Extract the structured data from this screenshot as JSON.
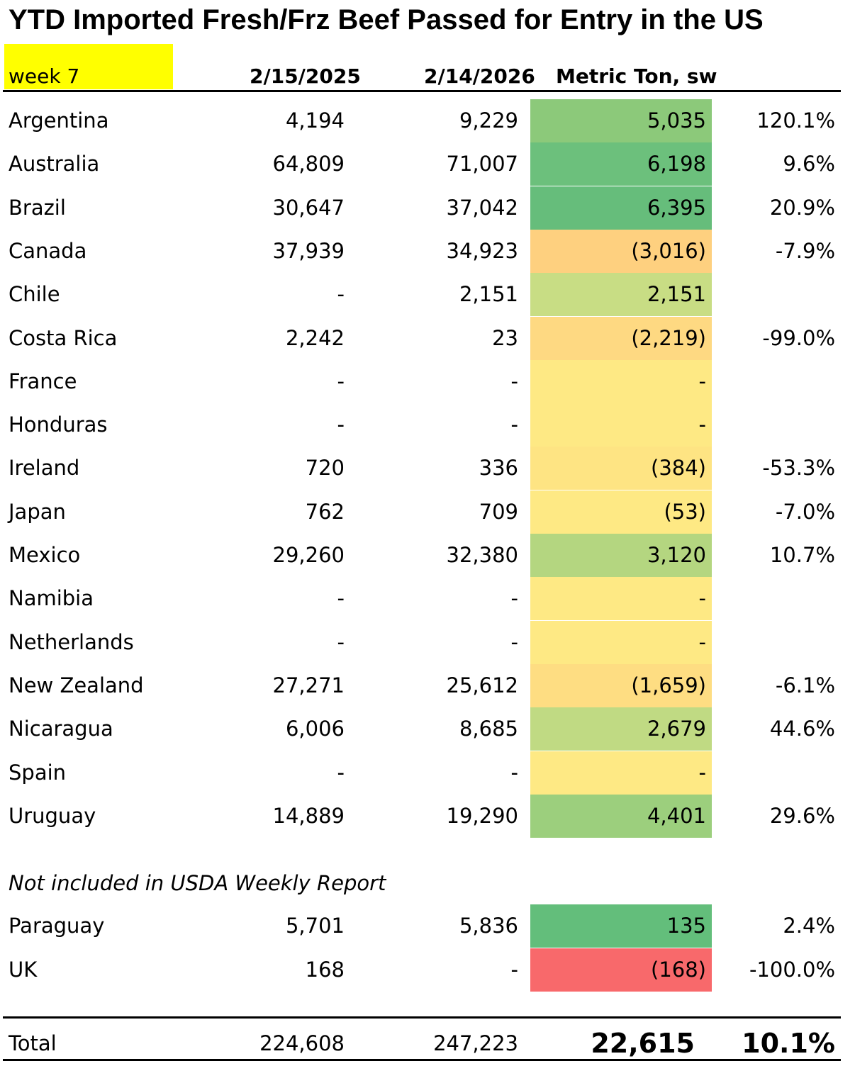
{
  "title": "YTD Imported Fresh/Frz Beef Passed for Entry in the US",
  "week_label": "week 7",
  "headers": {
    "date_prev": "2/15/2025",
    "date_curr": "2/14/2026",
    "unit": "Metric Ton, sw"
  },
  "rows": [
    {
      "country": "Argentina",
      "prev": "4,194",
      "curr": "9,229",
      "diff": "5,035",
      "pct": "120.1%",
      "color": "#8cc97a"
    },
    {
      "country": "Australia",
      "prev": "64,809",
      "curr": "71,007",
      "diff": "6,198",
      "pct": "9.6%",
      "color": "#6cc07c"
    },
    {
      "country": "Brazil",
      "prev": "30,647",
      "curr": "37,042",
      "diff": "6,395",
      "pct": "20.9%",
      "color": "#66bd7b"
    },
    {
      "country": "Canada",
      "prev": "37,939",
      "curr": "34,923",
      "diff": "(3,016)",
      "pct": "-7.9%",
      "color": "#fed07f"
    },
    {
      "country": "Chile",
      "prev": "-",
      "curr": "2,151",
      "diff": "2,151",
      "pct": "",
      "color": "#c8dd84"
    },
    {
      "country": "Costa Rica",
      "prev": "2,242",
      "curr": "23",
      "diff": "(2,219)",
      "pct": "-99.0%",
      "color": "#fed982"
    },
    {
      "country": "France",
      "prev": "-",
      "curr": "-",
      "diff": "-",
      "pct": "",
      "color": "#fee984"
    },
    {
      "country": "Honduras",
      "prev": "-",
      "curr": "-",
      "diff": "-",
      "pct": "",
      "color": "#fee984"
    },
    {
      "country": "Ireland",
      "prev": "720",
      "curr": "336",
      "diff": "(384)",
      "pct": "-53.3%",
      "color": "#fee483"
    },
    {
      "country": "Japan",
      "prev": "762",
      "curr": "709",
      "diff": "(53)",
      "pct": "-7.0%",
      "color": "#fee984"
    },
    {
      "country": "Mexico",
      "prev": "29,260",
      "curr": "32,380",
      "diff": "3,120",
      "pct": "10.7%",
      "color": "#b4d680"
    },
    {
      "country": "Namibia",
      "prev": "-",
      "curr": "-",
      "diff": "-",
      "pct": "",
      "color": "#fee984"
    },
    {
      "country": "Netherlands",
      "prev": "-",
      "curr": "-",
      "diff": "-",
      "pct": "",
      "color": "#fee984"
    },
    {
      "country": "New Zealand",
      "prev": "27,271",
      "curr": "25,612",
      "diff": "(1,659)",
      "pct": "-6.1%",
      "color": "#fedd82"
    },
    {
      "country": "Nicaragua",
      "prev": "6,006",
      "curr": "8,685",
      "diff": "2,679",
      "pct": "44.6%",
      "color": "#c0da83"
    },
    {
      "country": "Spain",
      "prev": "-",
      "curr": "-",
      "diff": "-",
      "pct": "",
      "color": "#fee984"
    },
    {
      "country": "Uruguay",
      "prev": "14,889",
      "curr": "19,290",
      "diff": "4,401",
      "pct": "29.6%",
      "color": "#9ccf7d"
    }
  ],
  "note": "Not included in USDA Weekly Report",
  "extra_rows": [
    {
      "country": "Paraguay",
      "prev": "5,701",
      "curr": "5,836",
      "diff": "135",
      "pct": "2.4%",
      "color": "#63be7b"
    },
    {
      "country": "UK",
      "prev": "168",
      "curr": "-",
      "diff": "(168)",
      "pct": "-100.0%",
      "color": "#f8696b"
    }
  ],
  "total": {
    "label": "Total",
    "prev": "224,608",
    "curr": "247,223",
    "diff": "22,615",
    "pct": "10.1%"
  }
}
